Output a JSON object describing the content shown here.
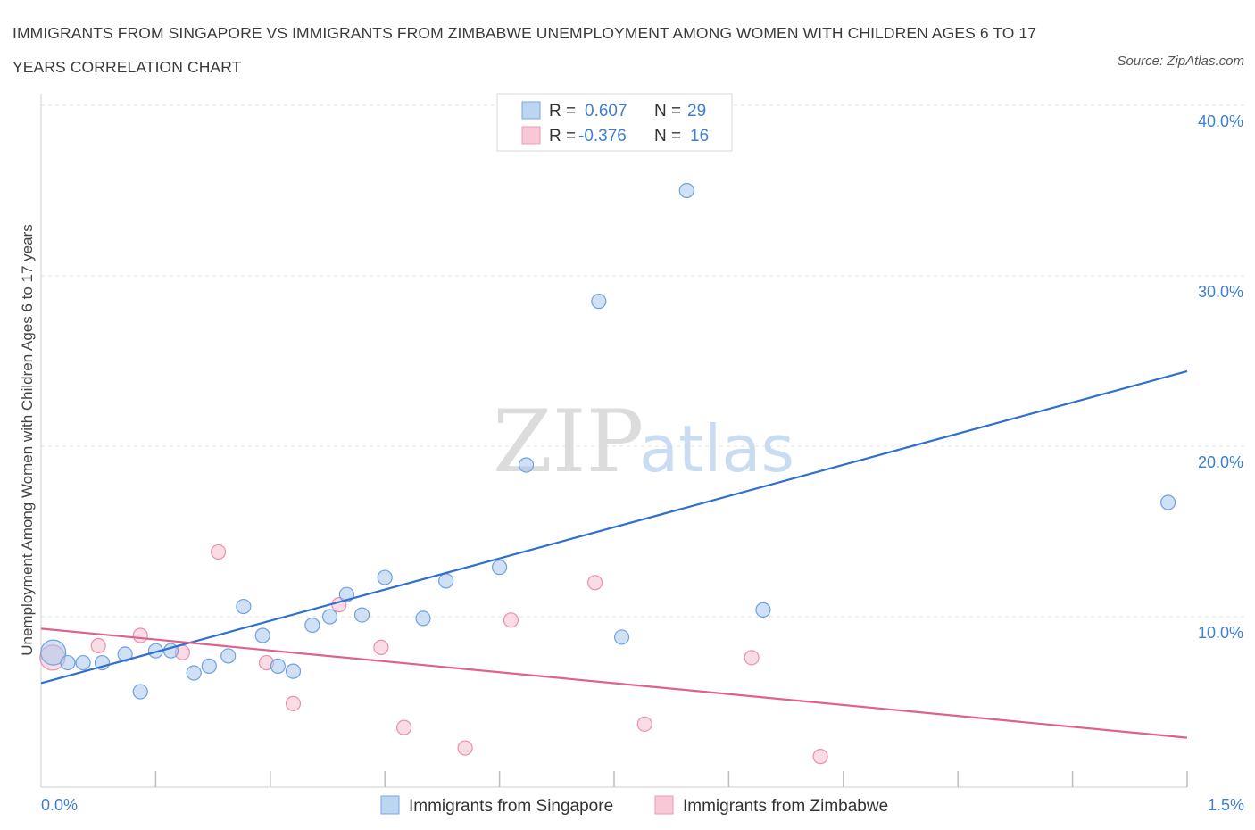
{
  "title": "IMMIGRANTS FROM SINGAPORE VS IMMIGRANTS FROM ZIMBABWE UNEMPLOYMENT AMONG WOMEN WITH CHILDREN AGES 6 TO 17 YEARS CORRELATION CHART",
  "source": "Source: ZipAtlas.com",
  "watermark": {
    "zip": "ZIP",
    "atlas": "atlas"
  },
  "legend": {
    "r_label": "R =",
    "n_label": "N =",
    "rows": [
      {
        "r": "0.607",
        "n": "29"
      },
      {
        "r": "-0.376",
        "n": "16"
      }
    ]
  },
  "chart_data": {
    "type": "scatter",
    "title": "IMMIGRANTS FROM SINGAPORE VS IMMIGRANTS FROM ZIMBABWE UNEMPLOYMENT AMONG WOMEN WITH CHILDREN AGES 6 TO 17 YEARS CORRELATION CHART",
    "xlabel": "",
    "ylabel": "Unemployment Among Women with Children Ages 6 to 17 years",
    "xlim": [
      0,
      1.5
    ],
    "ylim": [
      0,
      40
    ],
    "x_tick_labels": [
      "0.0%",
      "1.5%"
    ],
    "y_ticks": [
      10,
      20,
      30,
      40
    ],
    "y_tick_labels": [
      "10.0%",
      "20.0%",
      "30.0%",
      "40.0%"
    ],
    "grid": true,
    "legend_position": "top-center",
    "series": [
      {
        "name": "Immigrants from Singapore",
        "color": "#a9c8ef",
        "stroke": "#6fa0de",
        "line_color": "#2f6fcf",
        "trend": [
          [
            0,
            6.1
          ],
          [
            1.5,
            24.4
          ]
        ],
        "points": [
          [
            0.016,
            7.9
          ],
          [
            0.035,
            7.3
          ],
          [
            0.055,
            7.3
          ],
          [
            0.08,
            7.3
          ],
          [
            0.11,
            7.8
          ],
          [
            0.13,
            5.6
          ],
          [
            0.15,
            8.0
          ],
          [
            0.17,
            8.0
          ],
          [
            0.2,
            6.7
          ],
          [
            0.22,
            7.1
          ],
          [
            0.245,
            7.7
          ],
          [
            0.265,
            10.6
          ],
          [
            0.29,
            8.9
          ],
          [
            0.31,
            7.1
          ],
          [
            0.33,
            6.8
          ],
          [
            0.355,
            9.5
          ],
          [
            0.378,
            10.0
          ],
          [
            0.4,
            11.3
          ],
          [
            0.42,
            10.1
          ],
          [
            0.45,
            12.3
          ],
          [
            0.5,
            9.9
          ],
          [
            0.53,
            12.1
          ],
          [
            0.6,
            12.9
          ],
          [
            0.635,
            18.9
          ],
          [
            0.73,
            28.5
          ],
          [
            0.76,
            8.8
          ],
          [
            0.845,
            35.0
          ],
          [
            0.945,
            10.4
          ],
          [
            1.475,
            16.7
          ]
        ]
      },
      {
        "name": "Immigrants from Zimbabwe",
        "color": "#f6bfd0",
        "stroke": "#ea8fae",
        "line_color": "#e0608e",
        "trend": [
          [
            0,
            9.3
          ],
          [
            1.5,
            2.9
          ]
        ],
        "points": [
          [
            0.015,
            7.6
          ],
          [
            0.075,
            8.3
          ],
          [
            0.13,
            8.9
          ],
          [
            0.185,
            7.9
          ],
          [
            0.232,
            13.8
          ],
          [
            0.295,
            7.3
          ],
          [
            0.33,
            4.9
          ],
          [
            0.39,
            10.7
          ],
          [
            0.445,
            8.2
          ],
          [
            0.475,
            3.5
          ],
          [
            0.555,
            2.3
          ],
          [
            0.615,
            9.8
          ],
          [
            0.725,
            12.0
          ],
          [
            0.79,
            3.7
          ],
          [
            0.93,
            7.6
          ],
          [
            1.02,
            1.8
          ]
        ]
      }
    ]
  }
}
